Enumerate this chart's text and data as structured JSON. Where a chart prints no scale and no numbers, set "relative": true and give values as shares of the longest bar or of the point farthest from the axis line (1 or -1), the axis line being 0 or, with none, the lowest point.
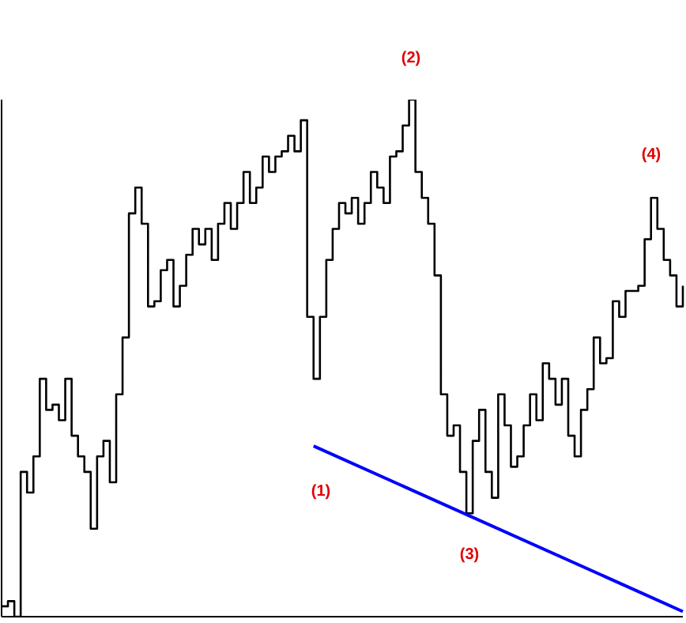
{
  "chart_data": {
    "type": "step",
    "relative": true,
    "categories": [
      null,
      null,
      null,
      null,
      null,
      null,
      null,
      null,
      null,
      null,
      null,
      null,
      null,
      null,
      null,
      null,
      null,
      null,
      null,
      null,
      null,
      null,
      null,
      null,
      null,
      null,
      null,
      null,
      null,
      null,
      null,
      null,
      null,
      null,
      null,
      null,
      null,
      null,
      null,
      null,
      null,
      null,
      null,
      null,
      null,
      null,
      null,
      null,
      null,
      null,
      null,
      null,
      null,
      null,
      null,
      null,
      null,
      null,
      null,
      null,
      null,
      null,
      null,
      null,
      null,
      null,
      null,
      null,
      null,
      null,
      null,
      null,
      null,
      null,
      null,
      null,
      null,
      null,
      null,
      null,
      null,
      null,
      null,
      null,
      null,
      null,
      null,
      null,
      null,
      null,
      null,
      null,
      null,
      null,
      null,
      null,
      null,
      null,
      null,
      null,
      null,
      null,
      null,
      null,
      null,
      null,
      null,
      null
    ],
    "series": [
      {
        "color": "#000000",
        "values": [
          0.02,
          0.03,
          0,
          0.28,
          0.24,
          0.31,
          0.46,
          0.4,
          0.41,
          0.38,
          0.46,
          0.35,
          0.31,
          0.28,
          0.17,
          0.31,
          0.34,
          0.26,
          0.43,
          0.54,
          0.78,
          0.83,
          0.76,
          0.6,
          0.61,
          0.67,
          0.69,
          0.6,
          0.64,
          0.7,
          0.75,
          0.72,
          0.75,
          0.69,
          0.76,
          0.8,
          0.75,
          0.8,
          0.86,
          0.8,
          0.83,
          0.89,
          0.86,
          0.89,
          0.9,
          0.93,
          0.9,
          0.96,
          0.58,
          0.46,
          0.58,
          0.69,
          0.75,
          0.8,
          0.78,
          0.81,
          0.76,
          0.8,
          0.86,
          0.83,
          0.8,
          0.89,
          0.9,
          0.95,
          1,
          0.86,
          0.81,
          0.76,
          0.66,
          0.43,
          0.35,
          0.37,
          0.28,
          0.2,
          0.34,
          0.4,
          0.28,
          0.23,
          0.43,
          0.37,
          0.29,
          0.31,
          0.37,
          0.43,
          0.38,
          0.49,
          0.46,
          0.41,
          0.46,
          0.35,
          0.31,
          0.4,
          0.44,
          0.54,
          0.49,
          0.5,
          0.61,
          0.58,
          0.63,
          0.63,
          0.64,
          0.73,
          0.81,
          0.75,
          0.69,
          0.66,
          0.6,
          0.64
        ]
      },
      {
        "type": "line",
        "color": "#0000ff",
        "values": [
          null,
          null,
          null,
          null,
          null,
          null,
          null,
          null,
          null,
          null,
          null,
          null,
          null,
          null,
          null,
          null,
          null,
          null,
          null,
          null,
          null,
          null,
          null,
          null,
          null,
          null,
          null,
          null,
          null,
          null,
          null,
          null,
          null,
          null,
          null,
          null,
          null,
          null,
          null,
          null,
          null,
          null,
          null,
          null,
          null,
          null,
          null,
          null,
          null,
          0.33,
          null,
          null,
          null,
          null,
          null,
          null,
          null,
          null,
          null,
          null,
          null,
          null,
          null,
          null,
          null,
          null,
          null,
          null,
          null,
          null,
          null,
          null,
          null,
          null,
          null,
          null,
          null,
          null,
          null,
          null,
          null,
          null,
          null,
          null,
          null,
          null,
          null,
          null,
          null,
          null,
          null,
          null,
          null,
          null,
          null,
          null,
          null,
          null,
          null,
          null,
          null,
          null,
          null,
          null,
          null,
          null,
          null,
          0.01
        ]
      }
    ],
    "annotations": [
      "(1)",
      "(2)",
      "(3)",
      "(4)"
    ],
    "grid": false,
    "legend": false
  }
}
